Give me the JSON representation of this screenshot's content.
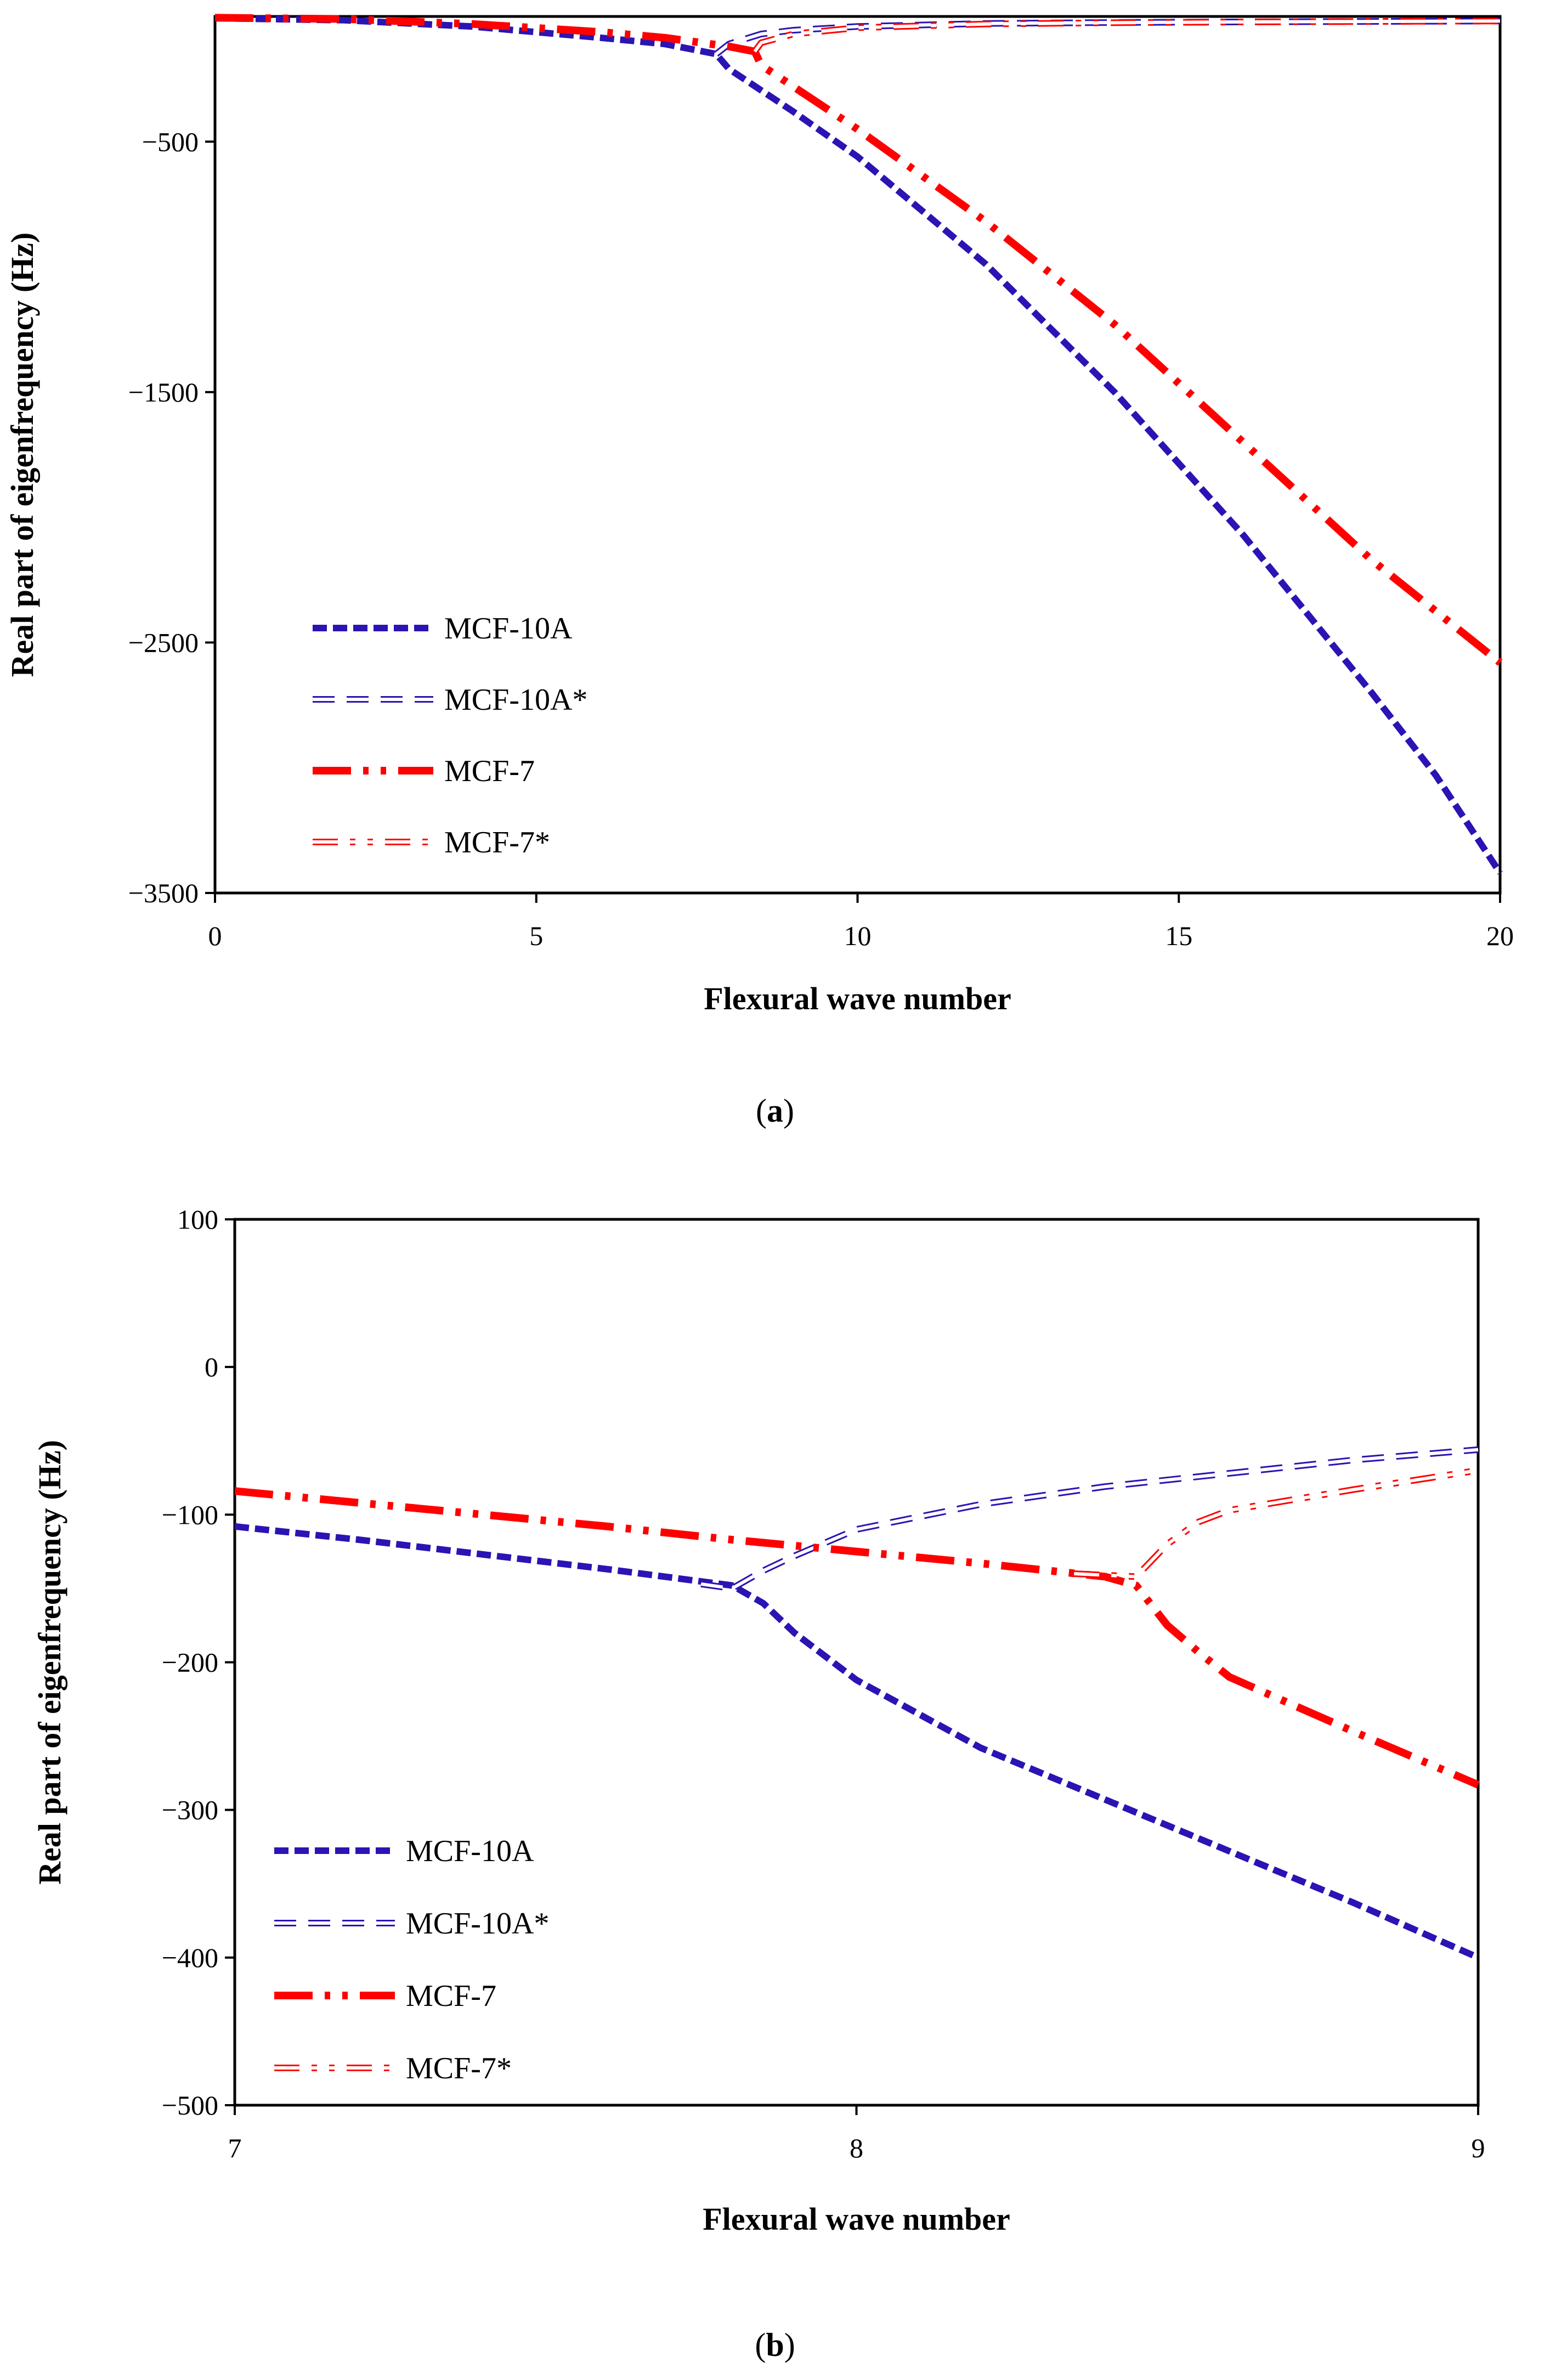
{
  "colors": {
    "blue": "#2a14b4",
    "red": "#ff0000",
    "frame": "#000000"
  },
  "chart_data": [
    {
      "id": "a",
      "type": "line",
      "caption_open": "(",
      "caption_letter": "a",
      "caption_close": ")",
      "xlabel": "Flexural wave number",
      "ylabel": "Real part of eigenfrequency (Hz)",
      "xlim": [
        0,
        20
      ],
      "ylim": [
        -3500,
        0
      ],
      "xticks": [
        0,
        5,
        10,
        15,
        20
      ],
      "xtick_labels": [
        "0",
        "5",
        "10",
        "15",
        "20"
      ],
      "yticks": [
        -500,
        -1500,
        -2500,
        -3500
      ],
      "ytick_labels": [
        "−500",
        "−1500",
        "−2500",
        "−3500"
      ],
      "legend_position": "lower-left",
      "series": [
        {
          "name": "MCF-10A",
          "style": "blue-dash",
          "x": [
            0,
            2,
            4,
            6,
            7,
            7.8,
            8,
            9,
            10,
            12,
            14,
            16,
            18,
            19,
            20
          ],
          "y": [
            -7,
            -15,
            -40,
            -85,
            -110,
            -150,
            -210,
            -380,
            -560,
            -990,
            -1500,
            -2070,
            -2700,
            -3030,
            -3420
          ]
        },
        {
          "name": "MCF-10A*",
          "style": "blue-hollow-dash",
          "x": [
            7.8,
            8,
            8.5,
            9,
            10,
            12,
            14,
            16,
            18,
            20
          ],
          "y": [
            -150,
            -110,
            -70,
            -55,
            -40,
            -28,
            -24,
            -22,
            -20,
            -18
          ]
        },
        {
          "name": "MCF-7",
          "style": "red-dash-dot-dot",
          "x": [
            0,
            2,
            4,
            6,
            7,
            8,
            8.4,
            8.5,
            9,
            10,
            12,
            14,
            16,
            18,
            20
          ],
          "y": [
            -5,
            -10,
            -30,
            -62,
            -85,
            -120,
            -140,
            -195,
            -280,
            -450,
            -820,
            -1230,
            -1700,
            -2170,
            -2580
          ]
        },
        {
          "name": "MCF-7*",
          "style": "red-hollow-dash-dot-dot",
          "x": [
            8.4,
            8.5,
            9,
            10,
            12,
            14,
            16,
            18,
            20
          ],
          "y": [
            -140,
            -105,
            -70,
            -45,
            -30,
            -25,
            -22,
            -20,
            -18
          ]
        }
      ]
    },
    {
      "id": "b",
      "type": "line",
      "caption_open": "(",
      "caption_letter": "b",
      "caption_close": ")",
      "xlabel": "Flexural wave number",
      "ylabel": "Real part of eigenfrequency (Hz)",
      "xlim": [
        7,
        9
      ],
      "ylim": [
        -500,
        100
      ],
      "xticks": [
        7,
        8,
        9
      ],
      "xtick_labels": [
        "7",
        "8",
        "9"
      ],
      "yticks": [
        100,
        0,
        -100,
        -200,
        -300,
        -400,
        -500
      ],
      "ytick_labels": [
        "100",
        "0",
        "−100",
        "−200",
        "−300",
        "−400",
        "−500"
      ],
      "legend_position": "lower-left",
      "series": [
        {
          "name": "MCF-10A",
          "style": "blue-dash",
          "x": [
            7,
            7.2,
            7.4,
            7.6,
            7.8,
            7.85,
            7.9,
            8,
            8.2,
            8.4,
            8.6,
            8.8,
            9
          ],
          "y": [
            -108,
            -117,
            -127,
            -137,
            -148,
            -160,
            -180,
            -212,
            -258,
            -293,
            -328,
            -363,
            -400
          ]
        },
        {
          "name": "MCF-10A*",
          "style": "blue-hollow-dash",
          "x": [
            7.75,
            7.8,
            7.85,
            7.9,
            8,
            8.2,
            8.4,
            8.6,
            8.8,
            9
          ],
          "y": [
            -147,
            -150,
            -138,
            -128,
            -110,
            -93,
            -81,
            -72,
            -63,
            -56
          ]
        },
        {
          "name": "MCF-7",
          "style": "red-dash-dot-dot",
          "x": [
            7,
            7.2,
            7.4,
            7.6,
            7.8,
            8,
            8.2,
            8.4,
            8.45,
            8.5,
            8.55,
            8.6,
            8.8,
            9
          ],
          "y": [
            -84,
            -92,
            -100,
            -108,
            -117,
            -125,
            -133,
            -142,
            -148,
            -175,
            -193,
            -210,
            -247,
            -283
          ]
        },
        {
          "name": "MCF-7*",
          "style": "red-hollow-dash-dot-dot",
          "x": [
            8.35,
            8.4,
            8.45,
            8.5,
            8.55,
            8.6,
            8.8,
            9
          ],
          "y": [
            -140,
            -141,
            -142,
            -120,
            -105,
            -97,
            -83,
            -70
          ]
        }
      ]
    }
  ]
}
